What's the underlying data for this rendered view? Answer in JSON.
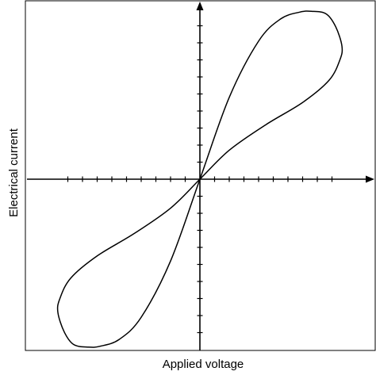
{
  "chart_data": {
    "type": "line",
    "xlabel": "Applied voltage",
    "ylabel": "Electrical current",
    "xlim": [
      -10,
      10
    ],
    "ylim": [
      -10,
      10
    ],
    "grid": false,
    "axes_through_origin": true,
    "x_ticks": [
      -9,
      -8,
      -7,
      -6,
      -5,
      -4,
      -3,
      -2,
      -1,
      1,
      2,
      3,
      4,
      5,
      6,
      7,
      8,
      9
    ],
    "y_ticks": [
      -9,
      -8,
      -7,
      -6,
      -5,
      -4,
      -3,
      -2,
      -1,
      1,
      2,
      3,
      4,
      5,
      6,
      7,
      8,
      9
    ],
    "curve_color": "#000000",
    "series": [
      {
        "name": "",
        "closed": true,
        "x": [
          0.0,
          2.0,
          4.0,
          5.5,
          6.8,
          7.6,
          8.6,
          9.25,
          9.68,
          9.54,
          8.8,
          7.0,
          4.5,
          2.0,
          0.0,
          -2.0,
          -4.5,
          -7.0,
          -8.8,
          -9.54,
          -9.68,
          -9.25,
          -8.6,
          -7.6,
          -6.8,
          -5.5,
          -4.0,
          -2.0,
          0.0
        ],
        "y": [
          0.0,
          4.8,
          8.1,
          9.4,
          9.8,
          9.85,
          9.7,
          8.95,
          7.8,
          7.0,
          5.8,
          4.5,
          3.2,
          1.7,
          0.0,
          -1.7,
          -3.2,
          -4.5,
          -5.8,
          -7.0,
          -7.8,
          -8.95,
          -9.7,
          -9.85,
          -9.8,
          -9.4,
          -8.1,
          -4.8,
          0.0
        ]
      }
    ]
  }
}
